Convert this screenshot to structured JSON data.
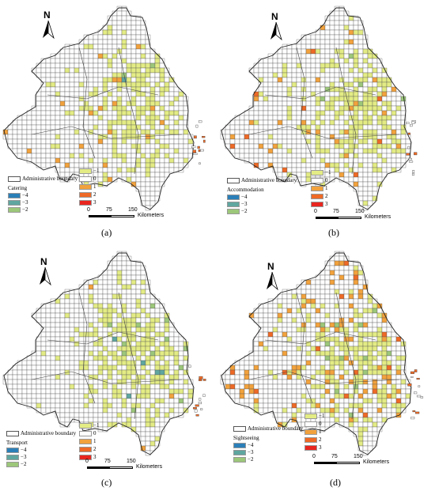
{
  "colors": {
    "neg4": "#2b7fb8",
    "neg3": "#5fa6a0",
    "neg2": "#9cc77a",
    "neg1": "#e3ec84",
    "zero": "#ffffff",
    "pos1": "#f2a23c",
    "pos2": "#ee6a26",
    "pos3": "#e8261f",
    "grid": "#333333"
  },
  "panels": [
    {
      "label": "(a)",
      "category": "Catering",
      "boundary_label": "Administrative boundary",
      "legend_neg": [
        "−4",
        "−3",
        "−2"
      ],
      "legend_pos": [
        "−1",
        "0",
        "1",
        "2",
        "3"
      ],
      "scale": {
        "ticks": [
          "0",
          "75",
          "150"
        ],
        "unit": "Kilometers"
      },
      "north": "N",
      "seed": 11,
      "bias": "catering"
    },
    {
      "label": "(b)",
      "category": "Accommodation",
      "boundary_label": "Administrative boundary",
      "legend_neg": [
        "−4",
        "−3",
        "−2"
      ],
      "legend_pos": [
        "−1",
        "0",
        "1",
        "2",
        "3"
      ],
      "scale": {
        "ticks": [
          "0",
          "75",
          "150"
        ],
        "unit": "Kilometers"
      },
      "north": "N",
      "seed": 23,
      "bias": "accommodation"
    },
    {
      "label": "(c)",
      "category": "Transport",
      "boundary_label": "Administrative boundary",
      "legend_neg": [
        "−4",
        "−3",
        "−2"
      ],
      "legend_pos": [
        "−1",
        "0",
        "1",
        "2",
        "3"
      ],
      "scale": {
        "ticks": [
          "0",
          "75",
          "150"
        ],
        "unit": "Kilometers"
      },
      "north": "N",
      "seed": 37,
      "bias": "transport"
    },
    {
      "label": "(d)",
      "category": "Sightseeing",
      "boundary_label": "Administrative boundary",
      "legend_neg": [
        "−4",
        "−3",
        "−2"
      ],
      "legend_pos": [
        "−1",
        "0",
        "1",
        "2",
        "3"
      ],
      "scale": {
        "ticks": [
          "0",
          "75",
          "150"
        ],
        "unit": "Kilometers"
      },
      "north": "N",
      "seed": 51,
      "bias": "sightseeing"
    }
  ]
}
